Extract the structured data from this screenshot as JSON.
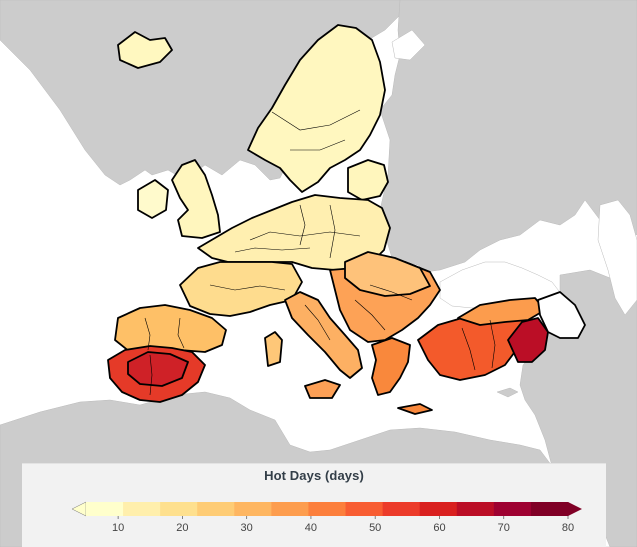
{
  "legend": {
    "title": "Hot Days (days)",
    "min": 5,
    "max": 80,
    "ticks": [
      10,
      20,
      30,
      40,
      50,
      60,
      70,
      80
    ],
    "colors": [
      "#ffffcc",
      "#ffefac",
      "#fee08e",
      "#fecc75",
      "#feb661",
      "#fd9d4e",
      "#fc7f3c",
      "#f85d32",
      "#ec3b2a",
      "#d9201f",
      "#bb0e26",
      "#9e0131",
      "#800026"
    ],
    "shape": "horizontal colorbar with triangular ends",
    "low_end_color": "#ffffcc",
    "high_end_color": "#800026"
  },
  "map": {
    "ocean_color": "#ffffff",
    "land_outside_color": "#cccccc",
    "border_color": "#000000",
    "layer": "Hot Days (days)"
  }
}
